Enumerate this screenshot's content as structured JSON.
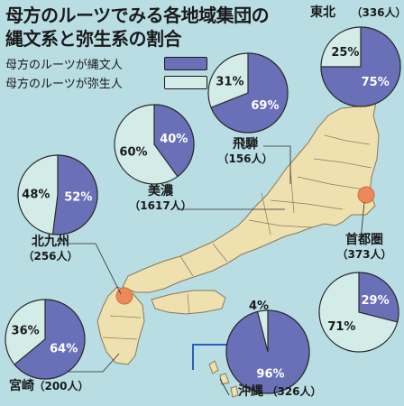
{
  "title_line1": "母方のルーツでみる各地域集団の",
  "title_line2": "縄文系と弥生系の割合",
  "colors": {
    "jomon": "#6a70b8",
    "yayoi": "#d3ece7",
    "background": "#b8dde3",
    "land": "#efe0b0",
    "marker": "#ea8a5a"
  },
  "chart_data": {
    "type": "pie",
    "legend": [
      {
        "key": "jomon",
        "label": "母方のルーツが縄文人"
      },
      {
        "key": "yayoi",
        "label": "母方のルーツが弥生人"
      }
    ],
    "regions": [
      {
        "name": "東北",
        "count": "（336人）",
        "jomon": 75,
        "yayoi": 25,
        "jomon_label": "75%",
        "yayoi_label": "25%"
      },
      {
        "name": "飛騨",
        "count": "（156人）",
        "jomon": 69,
        "yayoi": 31,
        "jomon_label": "69%",
        "yayoi_label": "31%"
      },
      {
        "name": "美濃",
        "count": "（1617人）",
        "jomon": 40,
        "yayoi": 60,
        "jomon_label": "40%",
        "yayoi_label": "60%"
      },
      {
        "name": "北九州",
        "count": "（256人）",
        "jomon": 52,
        "yayoi": 48,
        "jomon_label": "52%",
        "yayoi_label": "48%"
      },
      {
        "name": "首都圏",
        "count": "（373人）",
        "jomon": 29,
        "yayoi": 71,
        "jomon_label": "29%",
        "yayoi_label": "71%"
      },
      {
        "name": "宮崎",
        "count": "（200人）",
        "jomon": 64,
        "yayoi": 36,
        "jomon_label": "64%",
        "yayoi_label": "36%"
      },
      {
        "name": "沖縄",
        "count": "（326人）",
        "jomon": 96,
        "yayoi": 4,
        "jomon_label": "96%",
        "yayoi_label": "4%"
      }
    ]
  }
}
